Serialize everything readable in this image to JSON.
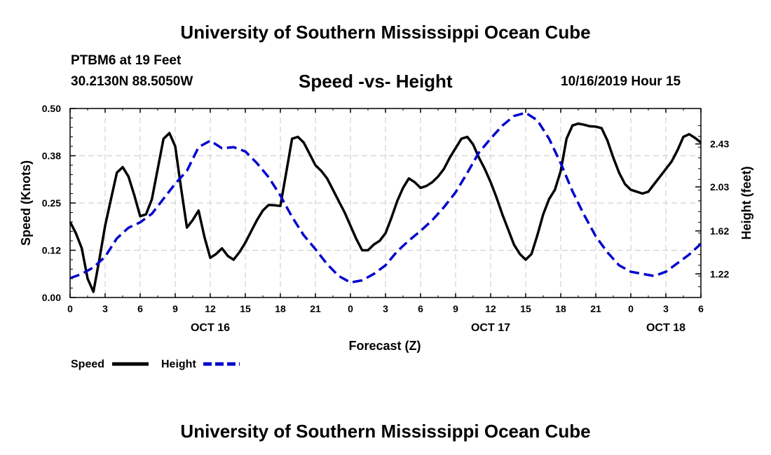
{
  "header": {
    "title": "University of Southern Mississippi Ocean Cube",
    "station": "PTBM6 at 19 Feet",
    "coords": "30.2130N 88.5050W",
    "plot_title": "Speed -vs- Height",
    "timestamp": "10/16/2019 Hour 15"
  },
  "footer": {
    "title": "University of Southern Mississippi Ocean Cube"
  },
  "chart_data": {
    "type": "line",
    "title": "Speed -vs- Height",
    "xlabel": "Forecast (Z)",
    "ylabel": "Speed (Knots)",
    "ylabel_right": "Height (feet)",
    "x_range_hours": [
      0,
      54
    ],
    "x_ticks": [
      "0",
      "3",
      "6",
      "9",
      "12",
      "15",
      "18",
      "21",
      "0",
      "3",
      "6",
      "9",
      "12",
      "15",
      "18",
      "21",
      "0",
      "3",
      "6"
    ],
    "date_labels": [
      {
        "label": "OCT 16",
        "hour": 12
      },
      {
        "label": "OCT 17",
        "hour": 36
      },
      {
        "label": "OCT 18",
        "hour": 51
      }
    ],
    "left_axis": {
      "min": 0,
      "max": 0.5,
      "ticks": [
        "0.00",
        "0.12",
        "0.25",
        "0.38",
        "0.50"
      ],
      "tick_values": [
        0,
        0.125,
        0.25,
        0.375,
        0.5
      ]
    },
    "right_axis": {
      "min": 1.0,
      "max": 2.76,
      "ticks": [
        "1.22",
        "1.62",
        "2.03",
        "2.43"
      ],
      "tick_values": [
        1.22,
        1.62,
        2.03,
        2.43
      ]
    },
    "grid": true,
    "legend": [
      {
        "label": "Speed",
        "color": "#000000",
        "style": "solid"
      },
      {
        "label": "Height",
        "color": "#0000cc",
        "style": "dashed"
      }
    ],
    "series": [
      {
        "name": "Speed",
        "axis": "left",
        "color": "#000000",
        "x": [
          0,
          0.5,
          1,
          1.5,
          2,
          2.5,
          3,
          3.5,
          4,
          4.5,
          5,
          5.5,
          6,
          6.5,
          7,
          7.5,
          8,
          8.5,
          9,
          9.5,
          10,
          10.5,
          11,
          11.5,
          12,
          12.5,
          13,
          13.5,
          14,
          14.5,
          15,
          15.5,
          16,
          16.5,
          17,
          17.5,
          18,
          18.5,
          19,
          19.5,
          20,
          20.5,
          21,
          21.5,
          22,
          22.5,
          23,
          23.5,
          24,
          24.5,
          25,
          25.5,
          26,
          26.5,
          27,
          27.5,
          28,
          28.5,
          29,
          29.5,
          30,
          30.5,
          31,
          31.5,
          32,
          32.5,
          33,
          33.5,
          34,
          34.5,
          35,
          35.5,
          36,
          36.5,
          37,
          37.5,
          38,
          38.5,
          39,
          39.5,
          40,
          40.5,
          41,
          41.5,
          42,
          42.5,
          43,
          43.5,
          44,
          44.5,
          45,
          45.5,
          46,
          46.5,
          47,
          47.5,
          48,
          48.5,
          49,
          49.5,
          50,
          50.5,
          51,
          51.5,
          52,
          52.5,
          53,
          53.5,
          54
        ],
        "values": [
          0.2,
          0.17,
          0.13,
          0.05,
          0.015,
          0.1,
          0.19,
          0.26,
          0.33,
          0.345,
          0.32,
          0.27,
          0.215,
          0.22,
          0.26,
          0.34,
          0.42,
          0.435,
          0.4,
          0.29,
          0.185,
          0.205,
          0.23,
          0.16,
          0.105,
          0.115,
          0.13,
          0.11,
          0.1,
          0.12,
          0.145,
          0.175,
          0.205,
          0.23,
          0.245,
          0.244,
          0.242,
          0.33,
          0.42,
          0.425,
          0.41,
          0.38,
          0.35,
          0.335,
          0.315,
          0.285,
          0.255,
          0.225,
          0.19,
          0.155,
          0.125,
          0.125,
          0.14,
          0.15,
          0.17,
          0.21,
          0.255,
          0.29,
          0.315,
          0.305,
          0.29,
          0.295,
          0.305,
          0.32,
          0.34,
          0.37,
          0.395,
          0.42,
          0.425,
          0.405,
          0.37,
          0.34,
          0.305,
          0.265,
          0.22,
          0.18,
          0.14,
          0.115,
          0.1,
          0.115,
          0.165,
          0.22,
          0.26,
          0.285,
          0.335,
          0.42,
          0.455,
          0.46,
          0.457,
          0.453,
          0.452,
          0.448,
          0.415,
          0.37,
          0.33,
          0.3,
          0.285,
          0.28,
          0.275,
          0.28,
          0.3,
          0.32,
          0.34,
          0.36,
          0.39,
          0.425,
          0.432,
          0.422,
          0.41
        ]
      },
      {
        "name": "Height",
        "axis": "right",
        "color": "#0000cc",
        "x": [
          0,
          1,
          2,
          3,
          4,
          5,
          6,
          7,
          8,
          9,
          10,
          11,
          12,
          13,
          14,
          15,
          16,
          17,
          18,
          19,
          20,
          21,
          22,
          23,
          24,
          25,
          26,
          27,
          28,
          29,
          30,
          31,
          32,
          33,
          34,
          35,
          36,
          37,
          38,
          39,
          40,
          41,
          42,
          43,
          44,
          45,
          46,
          47,
          48,
          49,
          50,
          51,
          52,
          53,
          54
        ],
        "values": [
          1.18,
          1.22,
          1.28,
          1.38,
          1.55,
          1.65,
          1.7,
          1.78,
          1.92,
          2.06,
          2.18,
          2.4,
          2.46,
          2.39,
          2.4,
          2.36,
          2.25,
          2.12,
          1.95,
          1.75,
          1.58,
          1.45,
          1.31,
          1.2,
          1.14,
          1.16,
          1.22,
          1.3,
          1.43,
          1.53,
          1.62,
          1.72,
          1.84,
          1.98,
          2.16,
          2.35,
          2.48,
          2.6,
          2.69,
          2.72,
          2.65,
          2.48,
          2.25,
          1.99,
          1.77,
          1.57,
          1.42,
          1.3,
          1.24,
          1.22,
          1.2,
          1.24,
          1.32,
          1.4,
          1.5
        ]
      }
    ]
  }
}
